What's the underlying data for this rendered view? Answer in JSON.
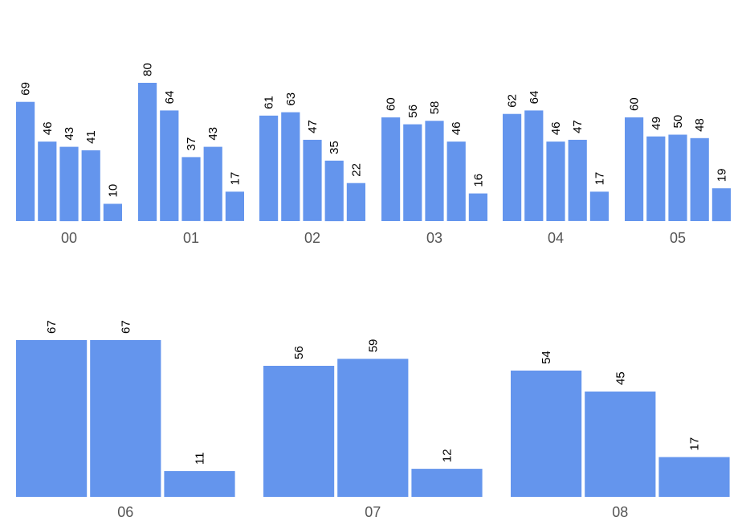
{
  "chart_data": [
    {
      "type": "bar",
      "label": "00",
      "values": [
        69,
        46,
        43,
        41,
        10
      ]
    },
    {
      "type": "bar",
      "label": "01",
      "values": [
        80,
        64,
        37,
        43,
        17
      ]
    },
    {
      "type": "bar",
      "label": "02",
      "values": [
        61,
        63,
        47,
        35,
        22
      ]
    },
    {
      "type": "bar",
      "label": "03",
      "values": [
        60,
        56,
        58,
        46,
        16
      ]
    },
    {
      "type": "bar",
      "label": "04",
      "values": [
        62,
        64,
        46,
        47,
        17
      ]
    },
    {
      "type": "bar",
      "label": "05",
      "values": [
        60,
        49,
        50,
        48,
        19
      ]
    },
    {
      "type": "bar",
      "label": "06",
      "values": [
        67,
        67,
        11
      ]
    },
    {
      "type": "bar",
      "label": "07",
      "values": [
        56,
        59,
        12
      ]
    },
    {
      "type": "bar",
      "label": "08",
      "values": [
        54,
        45,
        17
      ]
    }
  ],
  "colors": {
    "bar": "#6495ed",
    "label": "#555555"
  }
}
